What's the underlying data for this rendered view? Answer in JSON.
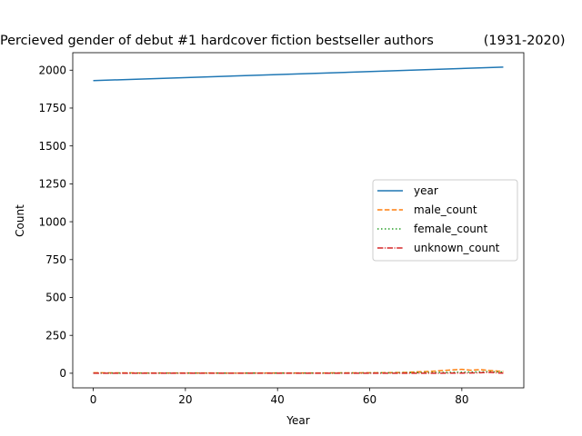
{
  "chart_data": {
    "type": "line",
    "title": "Percieved gender of debut #1 hardcover fiction bestseller authors            (1931-2020)",
    "xlabel": "Year",
    "ylabel": "Count",
    "xlim": [
      -4.45,
      93.45
    ],
    "ylim": [
      -96.45,
      2115.45
    ],
    "xticks": [
      0,
      20,
      40,
      60,
      80
    ],
    "yticks": [
      0,
      250,
      500,
      750,
      1000,
      1250,
      1500,
      1750,
      2000
    ],
    "grid": false,
    "legend_position": "center-right",
    "series": [
      {
        "name": "year",
        "color": "#1f77b4",
        "dash": "solid",
        "x": [
          0,
          89
        ],
        "y": [
          1931,
          2020
        ]
      },
      {
        "name": "male_count",
        "color": "#ff7f0e",
        "dash": "dashed",
        "x": [
          0,
          10,
          20,
          30,
          40,
          50,
          60,
          65,
          68,
          70,
          72,
          74,
          76,
          78,
          80,
          82,
          84,
          86,
          88,
          89
        ],
        "y": [
          3,
          2,
          2,
          1,
          2,
          2,
          3,
          4,
          6,
          9,
          11,
          14,
          18,
          22,
          26,
          20,
          24,
          18,
          14,
          12
        ]
      },
      {
        "name": "female_count",
        "color": "#2ca02c",
        "dash": "dotted",
        "x": [
          0,
          10,
          20,
          30,
          40,
          50,
          60,
          66,
          70,
          74,
          78,
          82,
          86,
          89
        ],
        "y": [
          1,
          1,
          1,
          1,
          1,
          1,
          2,
          3,
          4,
          5,
          6,
          8,
          10,
          8
        ]
      },
      {
        "name": "unknown_count",
        "color": "#d62728",
        "dash": "dashdot",
        "x": [
          0,
          10,
          20,
          30,
          40,
          50,
          60,
          70,
          80,
          84,
          86,
          88,
          89
        ],
        "y": [
          0,
          0,
          0,
          0,
          0,
          0,
          0,
          0,
          1,
          3,
          6,
          2,
          1
        ]
      }
    ]
  }
}
